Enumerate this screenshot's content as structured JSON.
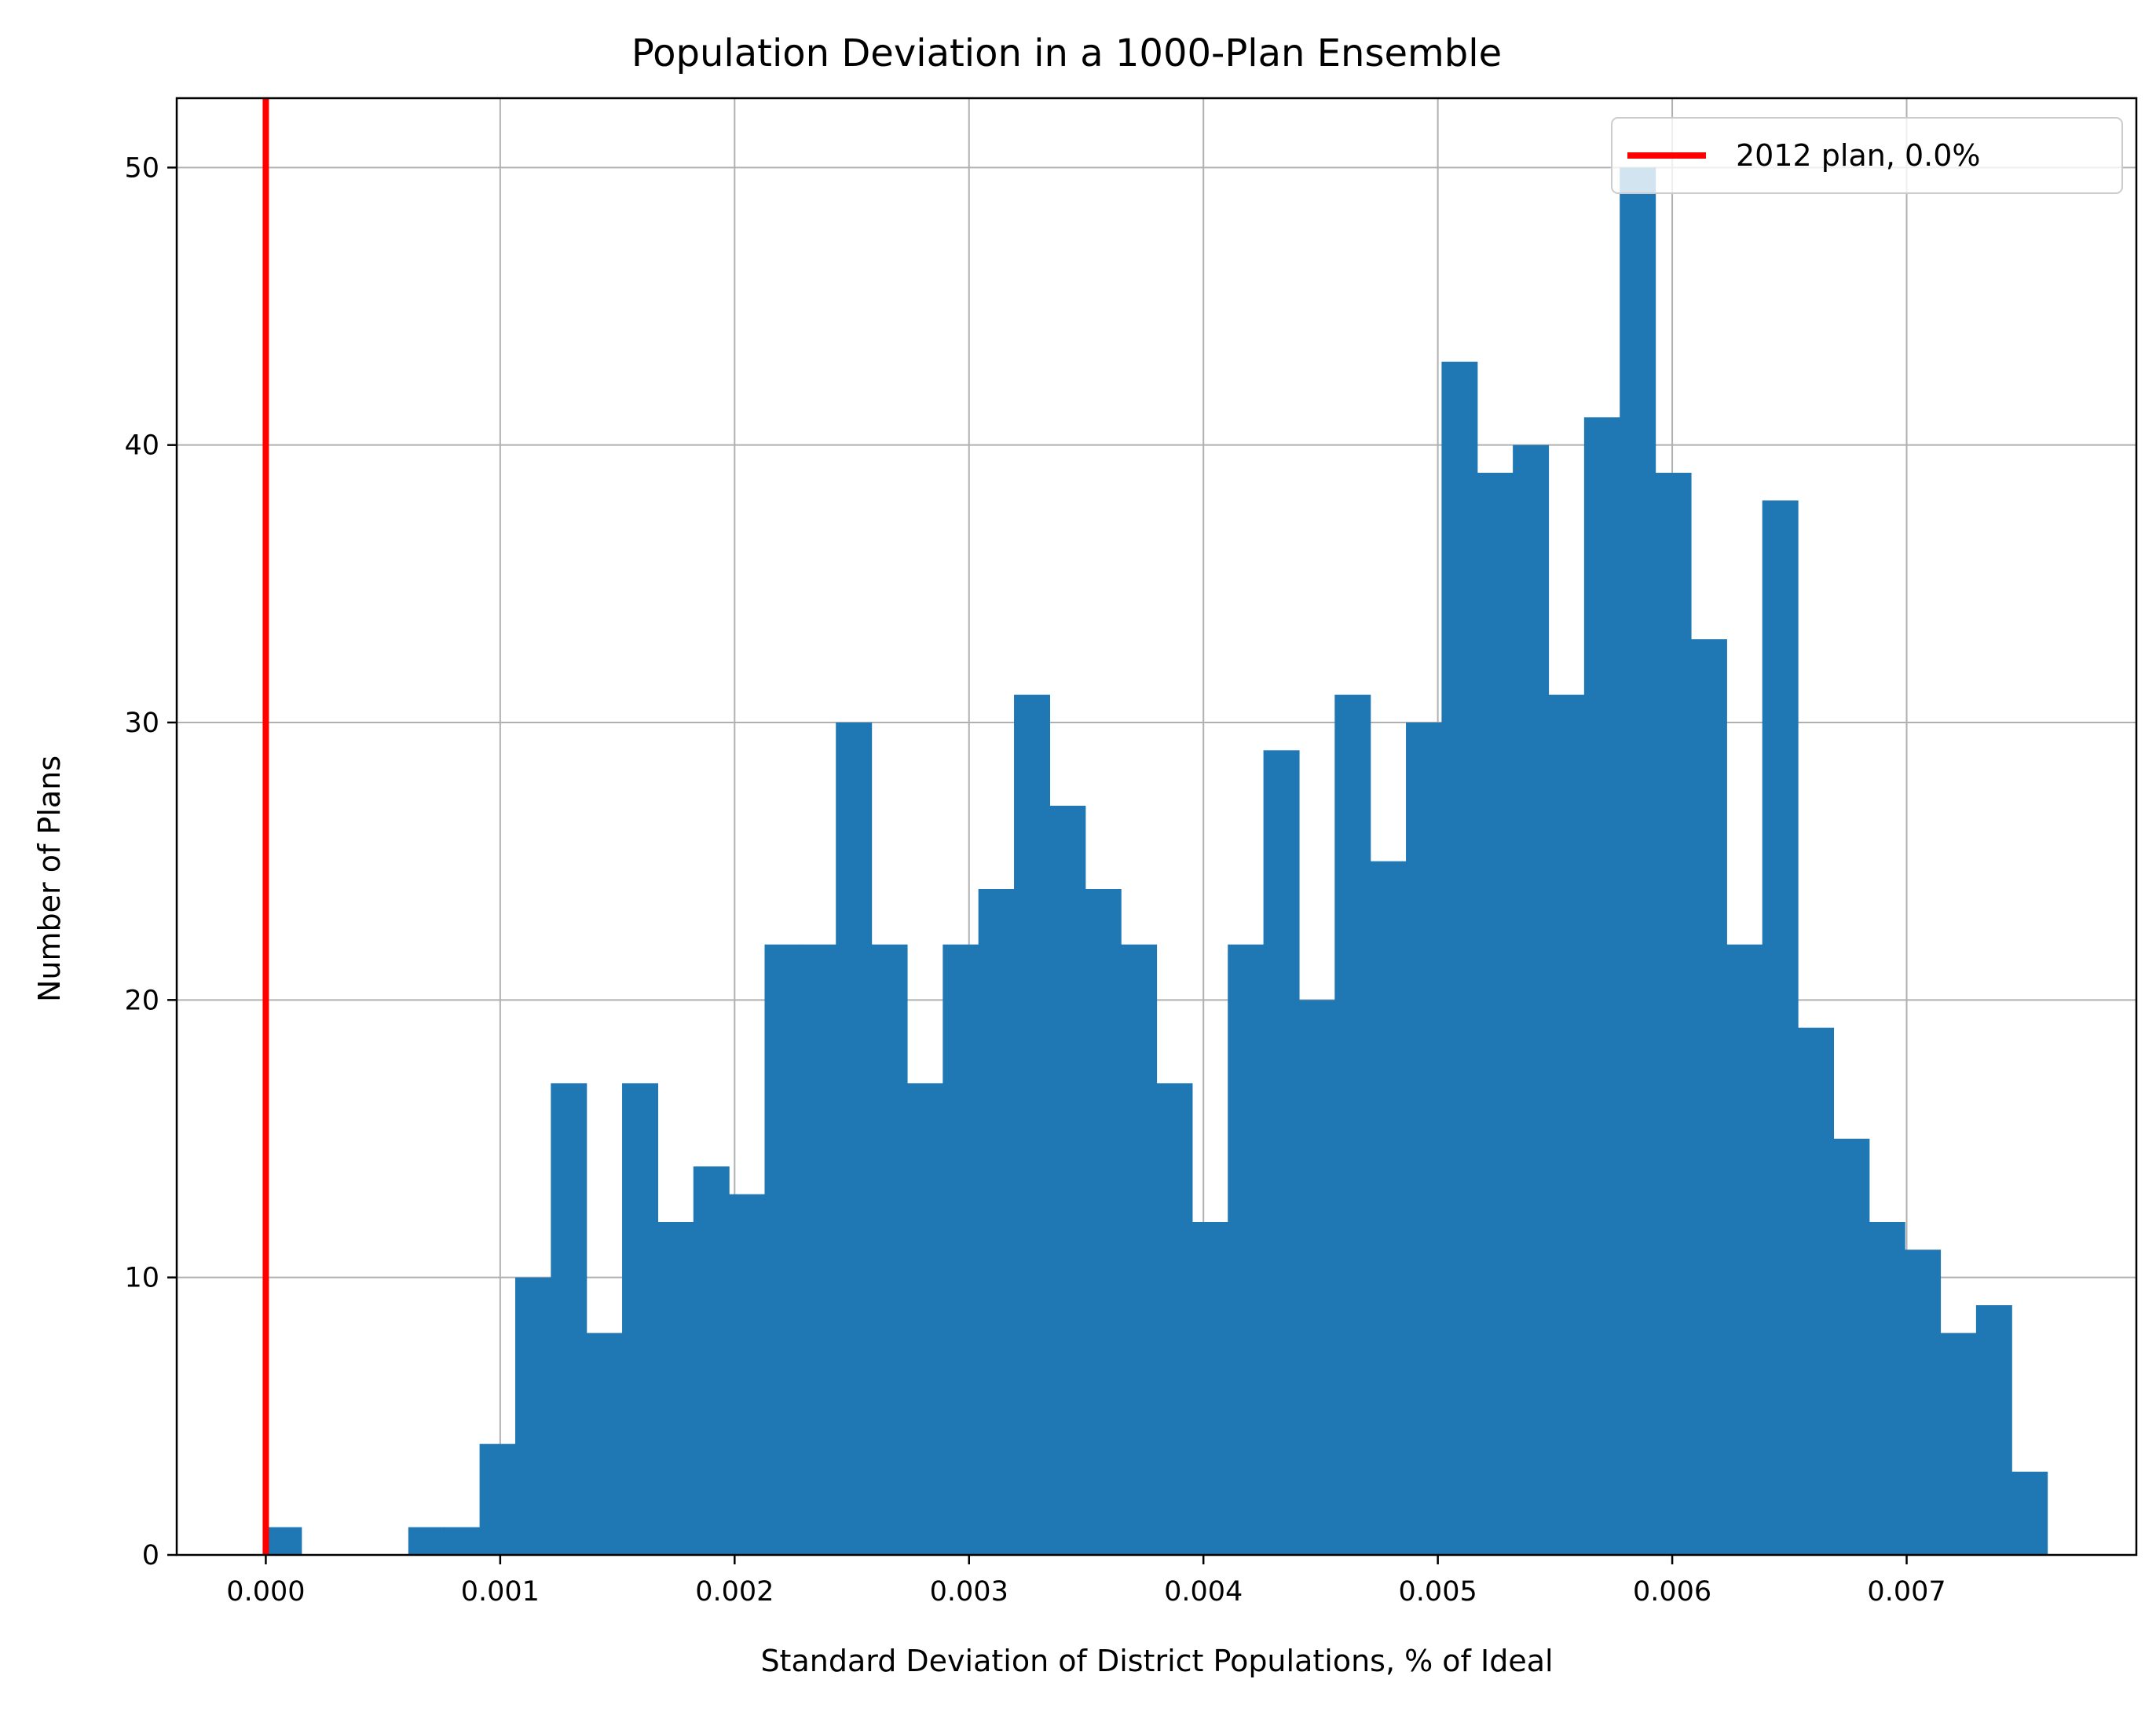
{
  "chart_data": {
    "type": "bar",
    "title": "Population Deviation in a 1000-Plan Ensemble",
    "xlabel": "Standard Deviation of District Populations, % of Ideal",
    "ylabel": "Number of Plans",
    "xlim": [
      -0.00038,
      0.00798
    ],
    "ylim": [
      0,
      52.5
    ],
    "grid": true,
    "xticks": [
      0.0,
      0.001,
      0.002,
      0.003,
      0.004,
      0.005,
      0.006,
      0.007
    ],
    "xtick_labels": [
      "0.000",
      "0.001",
      "0.002",
      "0.003",
      "0.004",
      "0.005",
      "0.006",
      "0.007"
    ],
    "yticks": [
      0,
      10,
      20,
      30,
      40,
      50
    ],
    "ytick_labels": [
      "0",
      "10",
      "20",
      "30",
      "40",
      "50"
    ],
    "bar_color": "#1f77b4",
    "bin_start": 0.0,
    "bin_width": 0.000152,
    "counts": [
      1,
      0,
      0,
      0,
      1,
      1,
      4,
      10,
      17,
      8,
      17,
      12,
      14,
      13,
      22,
      22,
      30,
      22,
      17,
      22,
      24,
      31,
      27,
      24,
      22,
      17,
      12,
      22,
      29,
      20,
      31,
      25,
      30,
      43,
      39,
      40,
      31,
      41,
      50,
      39,
      33,
      22,
      38,
      19,
      15,
      12,
      11,
      8,
      9,
      3
    ],
    "reference_line": {
      "x": 0.0,
      "color": "#ff0000",
      "label": "2012 plan, 0.0%"
    },
    "legend": {
      "position": "top-right",
      "entries": [
        "2012 plan, 0.0%"
      ]
    }
  }
}
